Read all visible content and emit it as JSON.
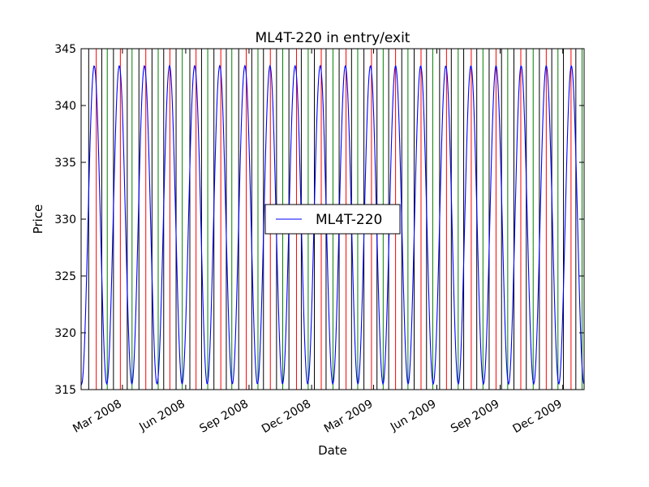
{
  "chart_data": {
    "type": "line",
    "title": "ML4T-220 in entry/exit",
    "xlabel": "Date",
    "ylabel": "Price",
    "xlim": [
      "2008-01-01",
      "2010-01-01"
    ],
    "ylim": [
      315,
      345
    ],
    "y_ticks": [
      315,
      320,
      325,
      330,
      335,
      340,
      345
    ],
    "x_ticks": [
      {
        "date": "2008-03-01",
        "label": "Mar 2008"
      },
      {
        "date": "2008-06-01",
        "label": "Jun 2008"
      },
      {
        "date": "2008-09-01",
        "label": "Sep 2008"
      },
      {
        "date": "2008-12-01",
        "label": "Dec 2008"
      },
      {
        "date": "2009-03-01",
        "label": "Mar 2009"
      },
      {
        "date": "2009-06-01",
        "label": "Jun 2009"
      },
      {
        "date": "2009-09-01",
        "label": "Sep 2009"
      },
      {
        "date": "2009-12-01",
        "label": "Dec 2009"
      }
    ],
    "grid": false,
    "legend_placement": "center",
    "series": [
      {
        "name": "ML4T-220",
        "color": "#0000ff",
        "cycle_days": 36.5,
        "min": 315.5,
        "max": 343.5,
        "trough_dates": [
          "2008-01-01",
          "2008-02-06",
          "2008-03-14",
          "2008-04-19",
          "2008-05-25",
          "2008-07-01",
          "2008-08-06",
          "2008-09-12",
          "2008-10-18",
          "2008-11-24",
          "2008-12-30",
          "2009-02-04",
          "2009-03-13",
          "2009-04-18",
          "2009-05-24",
          "2009-06-30",
          "2009-08-05",
          "2009-09-10",
          "2009-10-17",
          "2009-11-22",
          "2009-12-28"
        ],
        "peak_dates": [
          "2008-01-20",
          "2008-02-25",
          "2008-04-01",
          "2008-05-07",
          "2008-06-13",
          "2008-07-19",
          "2008-08-25",
          "2008-09-30",
          "2008-11-06",
          "2008-12-12",
          "2009-01-17",
          "2009-02-23",
          "2009-03-31",
          "2009-05-06",
          "2009-06-12",
          "2009-07-18",
          "2009-08-23",
          "2009-09-29",
          "2009-11-04",
          "2009-12-10"
        ]
      }
    ],
    "vertical_markers": {
      "colors": {
        "long_entry": "#008000",
        "short_entry": "#ff0000",
        "exit": "#000000"
      },
      "long_entry_dates": [
        "2008-01-01",
        "2008-02-08",
        "2008-03-15",
        "2008-04-22",
        "2008-05-27",
        "2008-07-03",
        "2008-08-07",
        "2008-09-14",
        "2008-10-20",
        "2008-11-26",
        "2009-01-01",
        "2009-02-06",
        "2009-03-15",
        "2009-04-20",
        "2009-05-26",
        "2009-07-02",
        "2009-08-07",
        "2009-09-12",
        "2009-10-19",
        "2009-11-24",
        "2009-12-29"
      ],
      "short_entry_dates": [
        "2008-01-23",
        "2008-02-27",
        "2008-04-04",
        "2008-05-09",
        "2008-06-16",
        "2008-07-22",
        "2008-08-28",
        "2008-10-02",
        "2008-11-09",
        "2008-12-15",
        "2009-01-20",
        "2009-02-26",
        "2009-04-02",
        "2009-05-09",
        "2009-06-15",
        "2009-07-21",
        "2009-08-26",
        "2009-10-01",
        "2009-11-07",
        "2009-12-13"
      ],
      "exit_dates": [
        "2008-01-12",
        "2008-01-31",
        "2008-02-17",
        "2008-03-08",
        "2008-03-25",
        "2008-04-13",
        "2008-04-30",
        "2008-05-18",
        "2008-06-07",
        "2008-06-24",
        "2008-07-12",
        "2008-07-30",
        "2008-08-17",
        "2008-09-05",
        "2008-09-22",
        "2008-10-11",
        "2008-10-29",
        "2008-11-16",
        "2008-12-05",
        "2008-12-22",
        "2009-01-10",
        "2009-01-28",
        "2009-02-15",
        "2009-03-06",
        "2009-03-23",
        "2009-04-11",
        "2009-04-29",
        "2009-05-17",
        "2009-06-05",
        "2009-06-22",
        "2009-07-10",
        "2009-07-29",
        "2009-08-16",
        "2009-09-03",
        "2009-09-21",
        "2009-10-09",
        "2009-10-28",
        "2009-11-15",
        "2009-12-02",
        "2009-12-20"
      ]
    }
  }
}
